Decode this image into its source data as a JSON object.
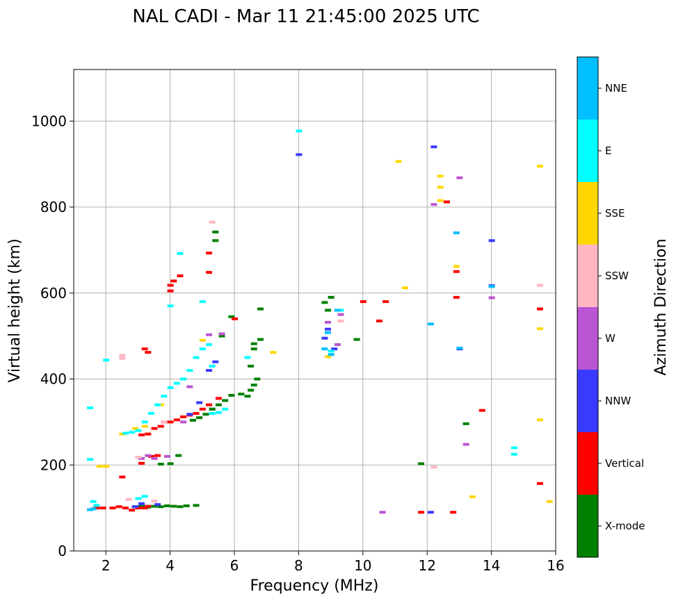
{
  "chart_data": {
    "type": "scatter",
    "title": "NAL CADI - Mar 11 21:45:00 2025 UTC",
    "xlabel": "Frequency (MHz)",
    "ylabel": "Virtual height (km)",
    "xlim": [
      1.0,
      16.0
    ],
    "ylim": [
      0,
      1120
    ],
    "xticks": [
      2,
      4,
      6,
      8,
      10,
      12,
      14,
      16
    ],
    "yticks": [
      0,
      200,
      400,
      600,
      800,
      1000
    ],
    "grid": true,
    "colorbar": {
      "label": "Azimuth Direction",
      "categories": [
        "X-mode",
        "Vertical",
        "NNW",
        "W",
        "SSW",
        "SSE",
        "E",
        "NNE"
      ],
      "colors": [
        "#008000",
        "#ff0000",
        "#3a3aff",
        "#ba55d3",
        "#ffb6c1",
        "#ffd700",
        "#00ffff",
        "#00bfff"
      ]
    },
    "series": [
      {
        "name": "X-mode",
        "points": [
          [
            2.9,
            103
          ],
          [
            3.1,
            104
          ],
          [
            3.3,
            102
          ],
          [
            3.5,
            104
          ],
          [
            3.7,
            103
          ],
          [
            3.9,
            105
          ],
          [
            4.1,
            104
          ],
          [
            4.3,
            103
          ],
          [
            4.5,
            105
          ],
          [
            4.8,
            106
          ],
          [
            3.7,
            202
          ],
          [
            4.0,
            203
          ],
          [
            4.25,
            222
          ],
          [
            4.7,
            304
          ],
          [
            4.9,
            310
          ],
          [
            5.1,
            318
          ],
          [
            5.3,
            330
          ],
          [
            5.5,
            340
          ],
          [
            5.7,
            350
          ],
          [
            5.9,
            362
          ],
          [
            6.2,
            365
          ],
          [
            6.4,
            360
          ],
          [
            6.5,
            374
          ],
          [
            6.6,
            386
          ],
          [
            6.7,
            400
          ],
          [
            6.5,
            430
          ],
          [
            6.6,
            470
          ],
          [
            6.6,
            482
          ],
          [
            6.8,
            492
          ],
          [
            5.3,
            330
          ],
          [
            5.6,
            500
          ],
          [
            5.9,
            545
          ],
          [
            6.8,
            563
          ],
          [
            5.4,
            722
          ],
          [
            5.4,
            742
          ],
          [
            8.8,
            578
          ],
          [
            8.9,
            560
          ],
          [
            9.0,
            590
          ],
          [
            9.8,
            492
          ],
          [
            11.8,
            203
          ],
          [
            13.2,
            296
          ]
        ]
      },
      {
        "name": "Vertical",
        "points": [
          [
            1.7,
            100
          ],
          [
            1.9,
            100
          ],
          [
            2.2,
            100
          ],
          [
            2.4,
            103
          ],
          [
            2.6,
            100
          ],
          [
            2.8,
            95
          ],
          [
            3.0,
            100
          ],
          [
            3.2,
            100
          ],
          [
            3.3,
            104
          ],
          [
            2.5,
            172
          ],
          [
            3.1,
            204
          ],
          [
            3.4,
            220
          ],
          [
            3.6,
            222
          ],
          [
            3.1,
            270
          ],
          [
            3.3,
            272
          ],
          [
            3.5,
            285
          ],
          [
            3.7,
            290
          ],
          [
            3.8,
            300
          ],
          [
            4.0,
            300
          ],
          [
            4.2,
            305
          ],
          [
            4.4,
            312
          ],
          [
            4.6,
            316
          ],
          [
            4.8,
            320
          ],
          [
            5.0,
            330
          ],
          [
            5.2,
            340
          ],
          [
            5.5,
            355
          ],
          [
            3.2,
            470
          ],
          [
            3.3,
            462
          ],
          [
            4.0,
            605
          ],
          [
            4.0,
            618
          ],
          [
            4.1,
            628
          ],
          [
            4.3,
            640
          ],
          [
            5.2,
            648
          ],
          [
            5.2,
            693
          ],
          [
            6.0,
            540
          ],
          [
            10.0,
            580
          ],
          [
            10.5,
            535
          ],
          [
            10.7,
            580
          ],
          [
            11.8,
            90
          ],
          [
            12.8,
            90
          ],
          [
            12.9,
            590
          ],
          [
            12.9,
            650
          ],
          [
            12.6,
            812
          ],
          [
            13.7,
            327
          ],
          [
            15.5,
            157
          ],
          [
            15.5,
            563
          ]
        ]
      },
      {
        "name": "NNW",
        "points": [
          [
            2.9,
            103
          ],
          [
            3.1,
            110
          ],
          [
            3.6,
            108
          ],
          [
            4.6,
            318
          ],
          [
            4.9,
            345
          ],
          [
            5.2,
            420
          ],
          [
            5.4,
            440
          ],
          [
            8.8,
            495
          ],
          [
            8.9,
            516
          ],
          [
            9.1,
            470
          ],
          [
            12.1,
            90
          ],
          [
            12.2,
            940
          ],
          [
            13.0,
            470
          ],
          [
            14.0,
            617
          ],
          [
            14.0,
            722
          ],
          [
            8.0,
            922
          ]
        ]
      },
      {
        "name": "W",
        "points": [
          [
            3.1,
            215
          ],
          [
            3.3,
            222
          ],
          [
            3.5,
            215
          ],
          [
            3.9,
            220
          ],
          [
            4.4,
            300
          ],
          [
            4.6,
            382
          ],
          [
            5.2,
            503
          ],
          [
            5.6,
            505
          ],
          [
            8.9,
            532
          ],
          [
            9.2,
            480
          ],
          [
            9.3,
            550
          ],
          [
            10.6,
            90
          ],
          [
            12.2,
            806
          ],
          [
            13.0,
            868
          ],
          [
            13.2,
            248
          ],
          [
            14.0,
            589
          ]
        ]
      },
      {
        "name": "SSW",
        "points": [
          [
            2.5,
            448
          ],
          [
            2.5,
            455
          ],
          [
            2.7,
            120
          ],
          [
            3.0,
            218
          ],
          [
            3.5,
            116
          ],
          [
            3.8,
            300
          ],
          [
            5.3,
            765
          ],
          [
            9.3,
            535
          ],
          [
            12.2,
            195
          ],
          [
            15.5,
            618
          ]
        ]
      },
      {
        "name": "SSE",
        "points": [
          [
            1.8,
            197
          ],
          [
            2.0,
            197
          ],
          [
            2.5,
            272
          ],
          [
            2.9,
            285
          ],
          [
            3.2,
            290
          ],
          [
            3.7,
            340
          ],
          [
            5.0,
            490
          ],
          [
            7.2,
            462
          ],
          [
            8.9,
            452
          ],
          [
            11.1,
            906
          ],
          [
            11.3,
            612
          ],
          [
            12.4,
            872
          ],
          [
            12.4,
            846
          ],
          [
            12.4,
            815
          ],
          [
            12.9,
            662
          ],
          [
            13.4,
            126
          ],
          [
            15.5,
            895
          ],
          [
            15.5,
            517
          ],
          [
            15.5,
            305
          ],
          [
            15.8,
            115
          ]
        ]
      },
      {
        "name": "E",
        "points": [
          [
            1.5,
            333
          ],
          [
            1.5,
            213
          ],
          [
            1.6,
            115
          ],
          [
            1.7,
            106
          ],
          [
            2.0,
            444
          ],
          [
            2.6,
            274
          ],
          [
            2.8,
            276
          ],
          [
            3.0,
            280
          ],
          [
            3.2,
            300
          ],
          [
            3.4,
            320
          ],
          [
            3.6,
            340
          ],
          [
            3.8,
            360
          ],
          [
            4.0,
            380
          ],
          [
            4.2,
            390
          ],
          [
            4.4,
            400
          ],
          [
            4.6,
            420
          ],
          [
            4.8,
            450
          ],
          [
            5.0,
            470
          ],
          [
            5.2,
            480
          ],
          [
            5.3,
            320
          ],
          [
            5.5,
            322
          ],
          [
            5.7,
            330
          ],
          [
            5.0,
            580
          ],
          [
            5.3,
            430
          ],
          [
            3.0,
            122
          ],
          [
            3.2,
            127
          ],
          [
            4.0,
            570
          ],
          [
            4.3,
            692
          ],
          [
            6.4,
            450
          ],
          [
            8.0,
            977
          ],
          [
            9.3,
            560
          ],
          [
            9.0,
            465
          ],
          [
            14.7,
            240
          ],
          [
            14.7,
            225
          ]
        ]
      },
      {
        "name": "NNE",
        "points": [
          [
            1.5,
            96
          ],
          [
            1.6,
            98
          ],
          [
            8.8,
            470
          ],
          [
            8.9,
            508
          ],
          [
            9.0,
            457
          ],
          [
            9.2,
            560
          ],
          [
            12.1,
            528
          ],
          [
            12.9,
            740
          ],
          [
            13.0,
            472
          ],
          [
            14.0,
            615
          ]
        ]
      }
    ]
  }
}
